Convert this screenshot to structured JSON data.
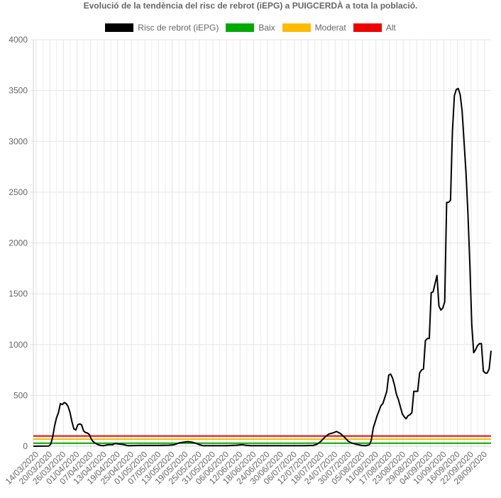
{
  "chart_data": {
    "type": "line",
    "title": "Evolució de la tendència del risc de rebrot (iEPG) a PUIGCERDÀ a tota la població.",
    "xlabel": "",
    "ylabel": "",
    "ylim": [
      0,
      4000
    ],
    "yticks": [
      0,
      500,
      1000,
      1500,
      2000,
      2500,
      3000,
      3500,
      4000
    ],
    "xticks": [
      "14/03/2020",
      "20/03/2020",
      "26/03/2020",
      "01/04/2020",
      "07/04/2020",
      "13/04/2020",
      "19/04/2020",
      "25/04/2020",
      "01/05/2020",
      "07/05/2020",
      "13/05/2020",
      "19/05/2020",
      "25/05/2020",
      "31/05/2020",
      "06/06/2020",
      "12/06/2020",
      "18/06/2020",
      "24/06/2020",
      "30/06/2020",
      "06/07/2020",
      "12/07/2020",
      "18/07/2020",
      "24/07/2020",
      "30/07/2020",
      "05/08/2020",
      "11/08/2020",
      "17/08/2020",
      "23/08/2020",
      "29/08/2020",
      "04/09/2020",
      "10/09/2020",
      "16/09/2020",
      "22/09/2020",
      "28/09/2020"
    ],
    "x_start": "14/03/2020",
    "x_end": "30/09/2020",
    "grid": true,
    "legend_position": "top",
    "thresholds": [
      {
        "name": "Baix",
        "value": 30,
        "color": "#00aa00"
      },
      {
        "name": "Moderat",
        "value": 70,
        "color": "#ffbb00"
      },
      {
        "name": "Alt",
        "value": 100,
        "color": "#ee0000"
      }
    ],
    "series": [
      {
        "name": "Risc de rebrot (iEPG)",
        "color": "#000000",
        "points": [
          [
            0,
            0
          ],
          [
            8,
            2
          ],
          [
            9,
            20
          ],
          [
            10,
            90
          ],
          [
            11,
            200
          ],
          [
            12,
            280
          ],
          [
            13,
            330
          ],
          [
            14,
            420
          ],
          [
            15,
            410
          ],
          [
            16,
            430
          ],
          [
            17,
            420
          ],
          [
            18,
            390
          ],
          [
            19,
            330
          ],
          [
            20,
            240
          ],
          [
            21,
            170
          ],
          [
            22,
            160
          ],
          [
            23,
            210
          ],
          [
            24,
            220
          ],
          [
            25,
            210
          ],
          [
            26,
            150
          ],
          [
            27,
            135
          ],
          [
            28,
            130
          ],
          [
            29,
            115
          ],
          [
            30,
            70
          ],
          [
            31,
            45
          ],
          [
            32,
            30
          ],
          [
            33,
            20
          ],
          [
            34,
            12
          ],
          [
            35,
            8
          ],
          [
            36,
            5
          ],
          [
            37,
            8
          ],
          [
            38,
            12
          ],
          [
            39,
            15
          ],
          [
            40,
            15
          ],
          [
            41,
            14
          ],
          [
            42,
            25
          ],
          [
            43,
            25
          ],
          [
            44,
            22
          ],
          [
            45,
            20
          ],
          [
            46,
            18
          ],
          [
            47,
            15
          ],
          [
            48,
            10
          ],
          [
            49,
            5
          ],
          [
            50,
            5
          ],
          [
            55,
            8
          ],
          [
            60,
            8
          ],
          [
            65,
            8
          ],
          [
            70,
            10
          ],
          [
            73,
            15
          ],
          [
            76,
            35
          ],
          [
            78,
            40
          ],
          [
            80,
            45
          ],
          [
            82,
            40
          ],
          [
            84,
            30
          ],
          [
            86,
            15
          ],
          [
            88,
            5
          ],
          [
            95,
            5
          ],
          [
            100,
            5
          ],
          [
            105,
            10
          ],
          [
            108,
            15
          ],
          [
            110,
            10
          ],
          [
            113,
            5
          ],
          [
            120,
            5
          ],
          [
            130,
            5
          ],
          [
            140,
            5
          ],
          [
            145,
            8
          ],
          [
            147,
            20
          ],
          [
            149,
            50
          ],
          [
            151,
            90
          ],
          [
            153,
            120
          ],
          [
            155,
            130
          ],
          [
            157,
            145
          ],
          [
            159,
            125
          ],
          [
            161,
            90
          ],
          [
            163,
            50
          ],
          [
            165,
            30
          ],
          [
            167,
            20
          ],
          [
            170,
            8
          ],
          [
            172,
            5
          ],
          [
            174,
            15
          ],
          [
            175,
            60
          ],
          [
            176,
            180
          ],
          [
            178,
            300
          ],
          [
            180,
            400
          ],
          [
            181,
            420
          ],
          [
            182,
            480
          ],
          [
            183,
            540
          ],
          [
            184,
            700
          ],
          [
            185,
            710
          ],
          [
            186,
            670
          ],
          [
            187,
            600
          ],
          [
            188,
            510
          ],
          [
            189,
            460
          ],
          [
            190,
            390
          ],
          [
            191,
            320
          ],
          [
            192,
            290
          ],
          [
            193,
            270
          ],
          [
            194,
            300
          ],
          [
            195,
            310
          ],
          [
            196,
            330
          ],
          [
            197,
            540
          ],
          [
            198,
            540
          ],
          [
            199,
            540
          ],
          [
            200,
            720
          ],
          [
            201,
            750
          ],
          [
            202,
            760
          ],
          [
            203,
            1040
          ],
          [
            204,
            1060
          ],
          [
            205,
            1060
          ],
          [
            206,
            1510
          ],
          [
            207,
            1520
          ],
          [
            208,
            1600
          ],
          [
            209,
            1680
          ],
          [
            210,
            1380
          ],
          [
            211,
            1340
          ],
          [
            212,
            1360
          ],
          [
            213,
            1420
          ],
          [
            214,
            2400
          ],
          [
            215,
            2400
          ],
          [
            216,
            2420
          ],
          [
            217,
            3100
          ],
          [
            218,
            3450
          ],
          [
            219,
            3510
          ],
          [
            220,
            3520
          ],
          [
            221,
            3460
          ],
          [
            222,
            3300
          ],
          [
            223,
            3000
          ],
          [
            224,
            2700
          ],
          [
            225,
            2300
          ],
          [
            226,
            1800
          ],
          [
            227,
            1200
          ],
          [
            228,
            920
          ],
          [
            229,
            950
          ],
          [
            230,
            990
          ],
          [
            231,
            1010
          ],
          [
            232,
            1010
          ],
          [
            233,
            740
          ],
          [
            234,
            720
          ],
          [
            235,
            720
          ],
          [
            236,
            760
          ],
          [
            237,
            940
          ]
        ]
      }
    ]
  }
}
